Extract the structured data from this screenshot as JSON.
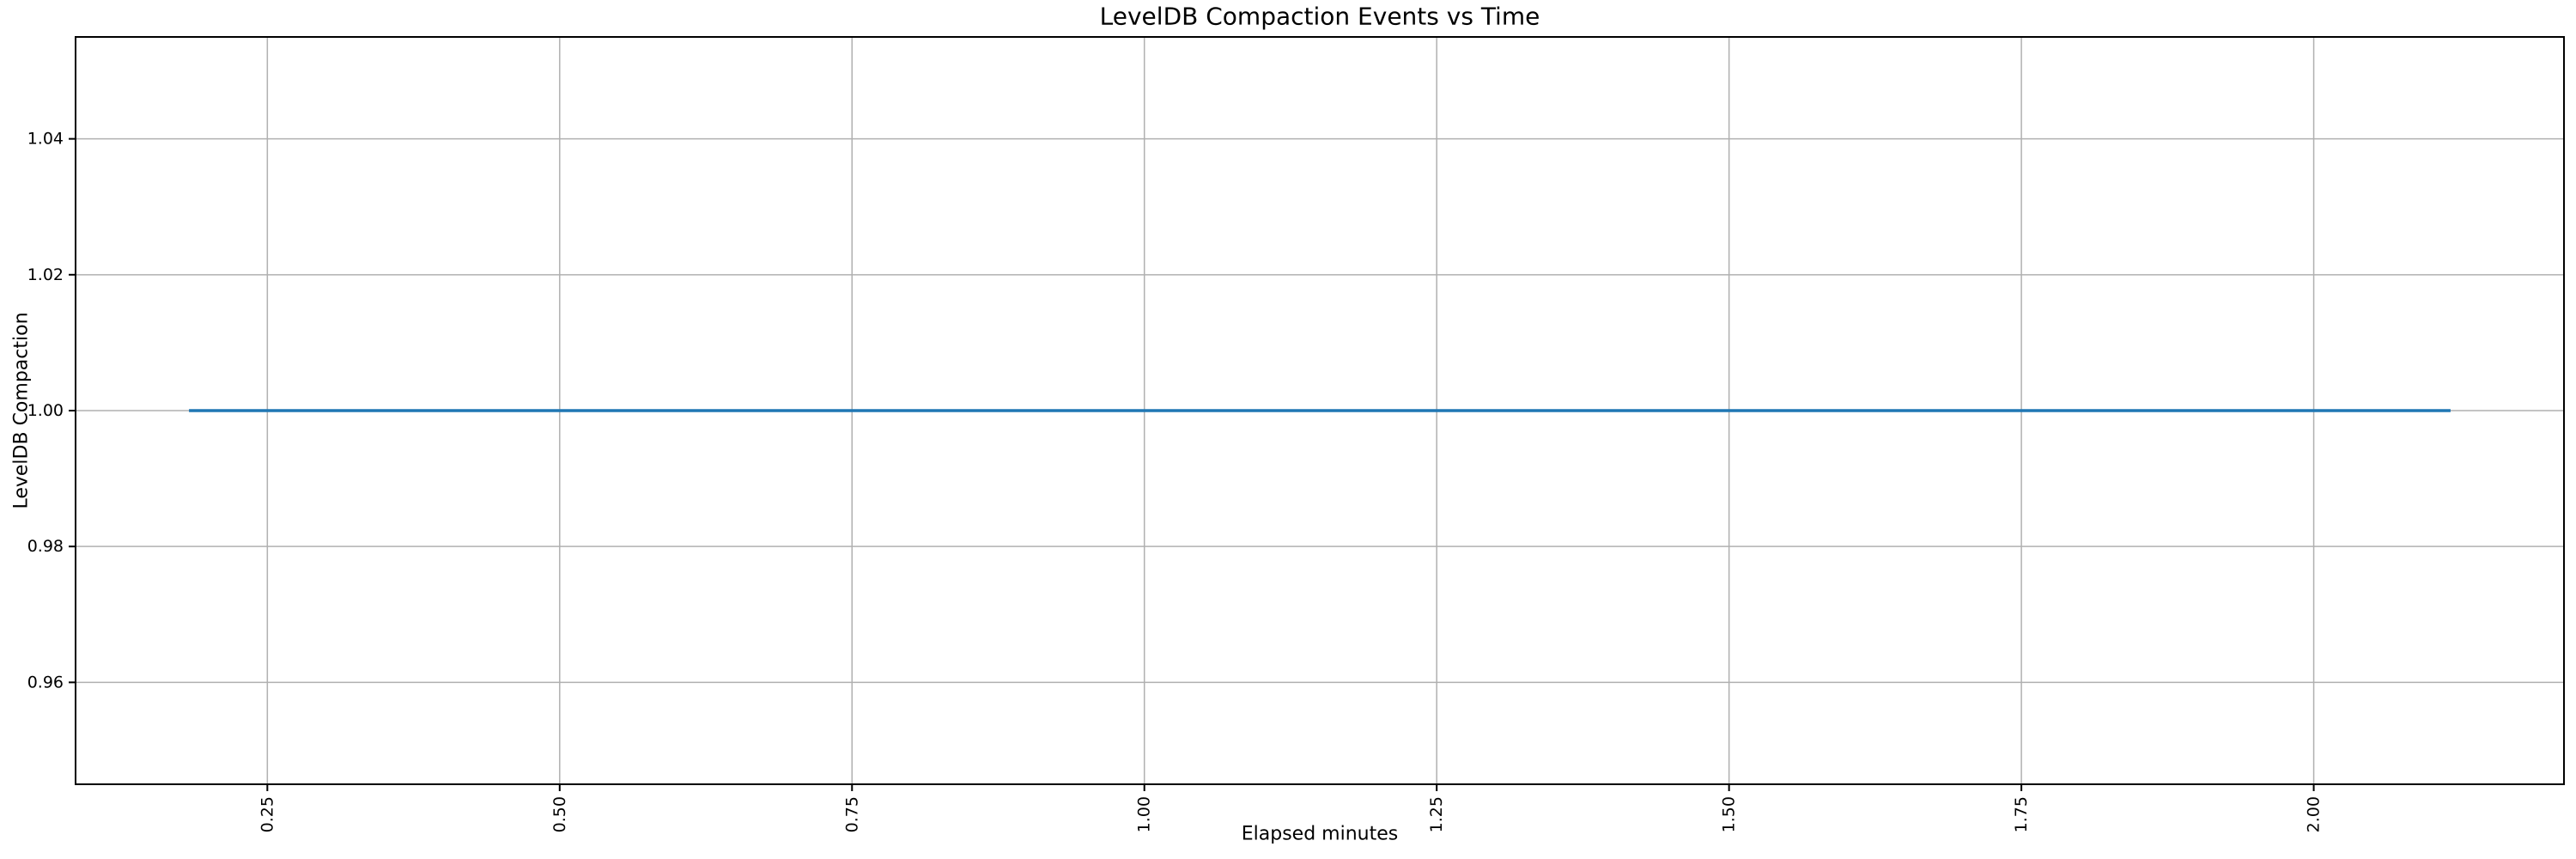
{
  "chart_data": {
    "type": "line",
    "title": "LevelDB Compaction Events vs Time",
    "xlabel": "Elapsed minutes",
    "ylabel": "LevelDB Compaction",
    "xlim": [
      0.086,
      2.214
    ],
    "ylim": [
      0.945,
      1.055
    ],
    "grid": true,
    "legend": "none",
    "xticks": {
      "values": [
        0.25,
        0.5,
        0.75,
        1.0,
        1.25,
        1.5,
        1.75,
        2.0
      ],
      "labels": [
        "0.25",
        "0.50",
        "0.75",
        "1.00",
        "1.25",
        "1.50",
        "1.75",
        "2.00"
      ],
      "rotation": 90
    },
    "yticks": {
      "values": [
        0.96,
        0.98,
        1.0,
        1.02,
        1.04
      ],
      "labels": [
        "0.96",
        "0.98",
        "1.00",
        "1.02",
        "1.04"
      ]
    },
    "series": [
      {
        "name": "LevelDB Compaction",
        "color": "#1f77b4",
        "points": [
          [
            0.183,
            1.0
          ],
          [
            2.117,
            1.0
          ]
        ]
      }
    ],
    "colors": {
      "background": "#ffffff",
      "grid": "#b0b0b0",
      "axis": "#000000",
      "text": "#000000"
    }
  }
}
